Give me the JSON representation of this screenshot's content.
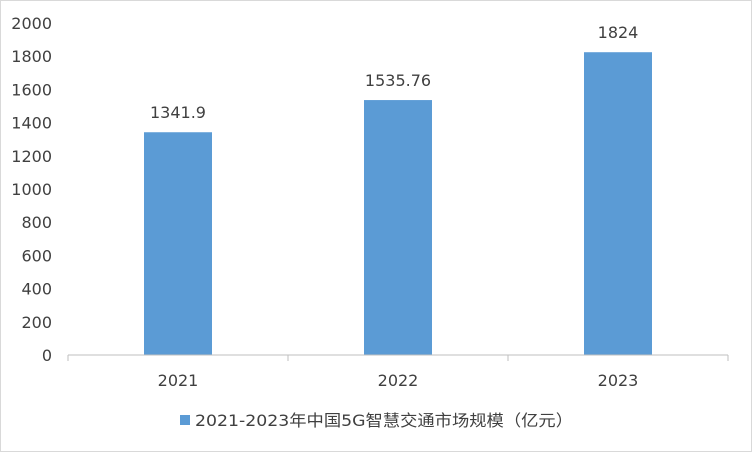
{
  "chart_data": {
    "type": "bar",
    "categories": [
      "2021",
      "2022",
      "2023"
    ],
    "series": [
      {
        "name": "2021-2023年中国5G智慧交通市场规模（亿元）",
        "values": [
          1341.9,
          1535.76,
          1824
        ],
        "data_labels": [
          "1341.9",
          "1535.76",
          "1824"
        ]
      }
    ],
    "y_ticks": [
      "0",
      "200",
      "400",
      "600",
      "800",
      "1000",
      "1200",
      "1400",
      "1600",
      "1800",
      "2000"
    ],
    "ylim": [
      0,
      2000
    ],
    "grid": false,
    "legend_position": "bottom",
    "bar_color": "#5b9bd5",
    "axis_color": "#bfbfbf",
    "text_color": "#404040"
  }
}
